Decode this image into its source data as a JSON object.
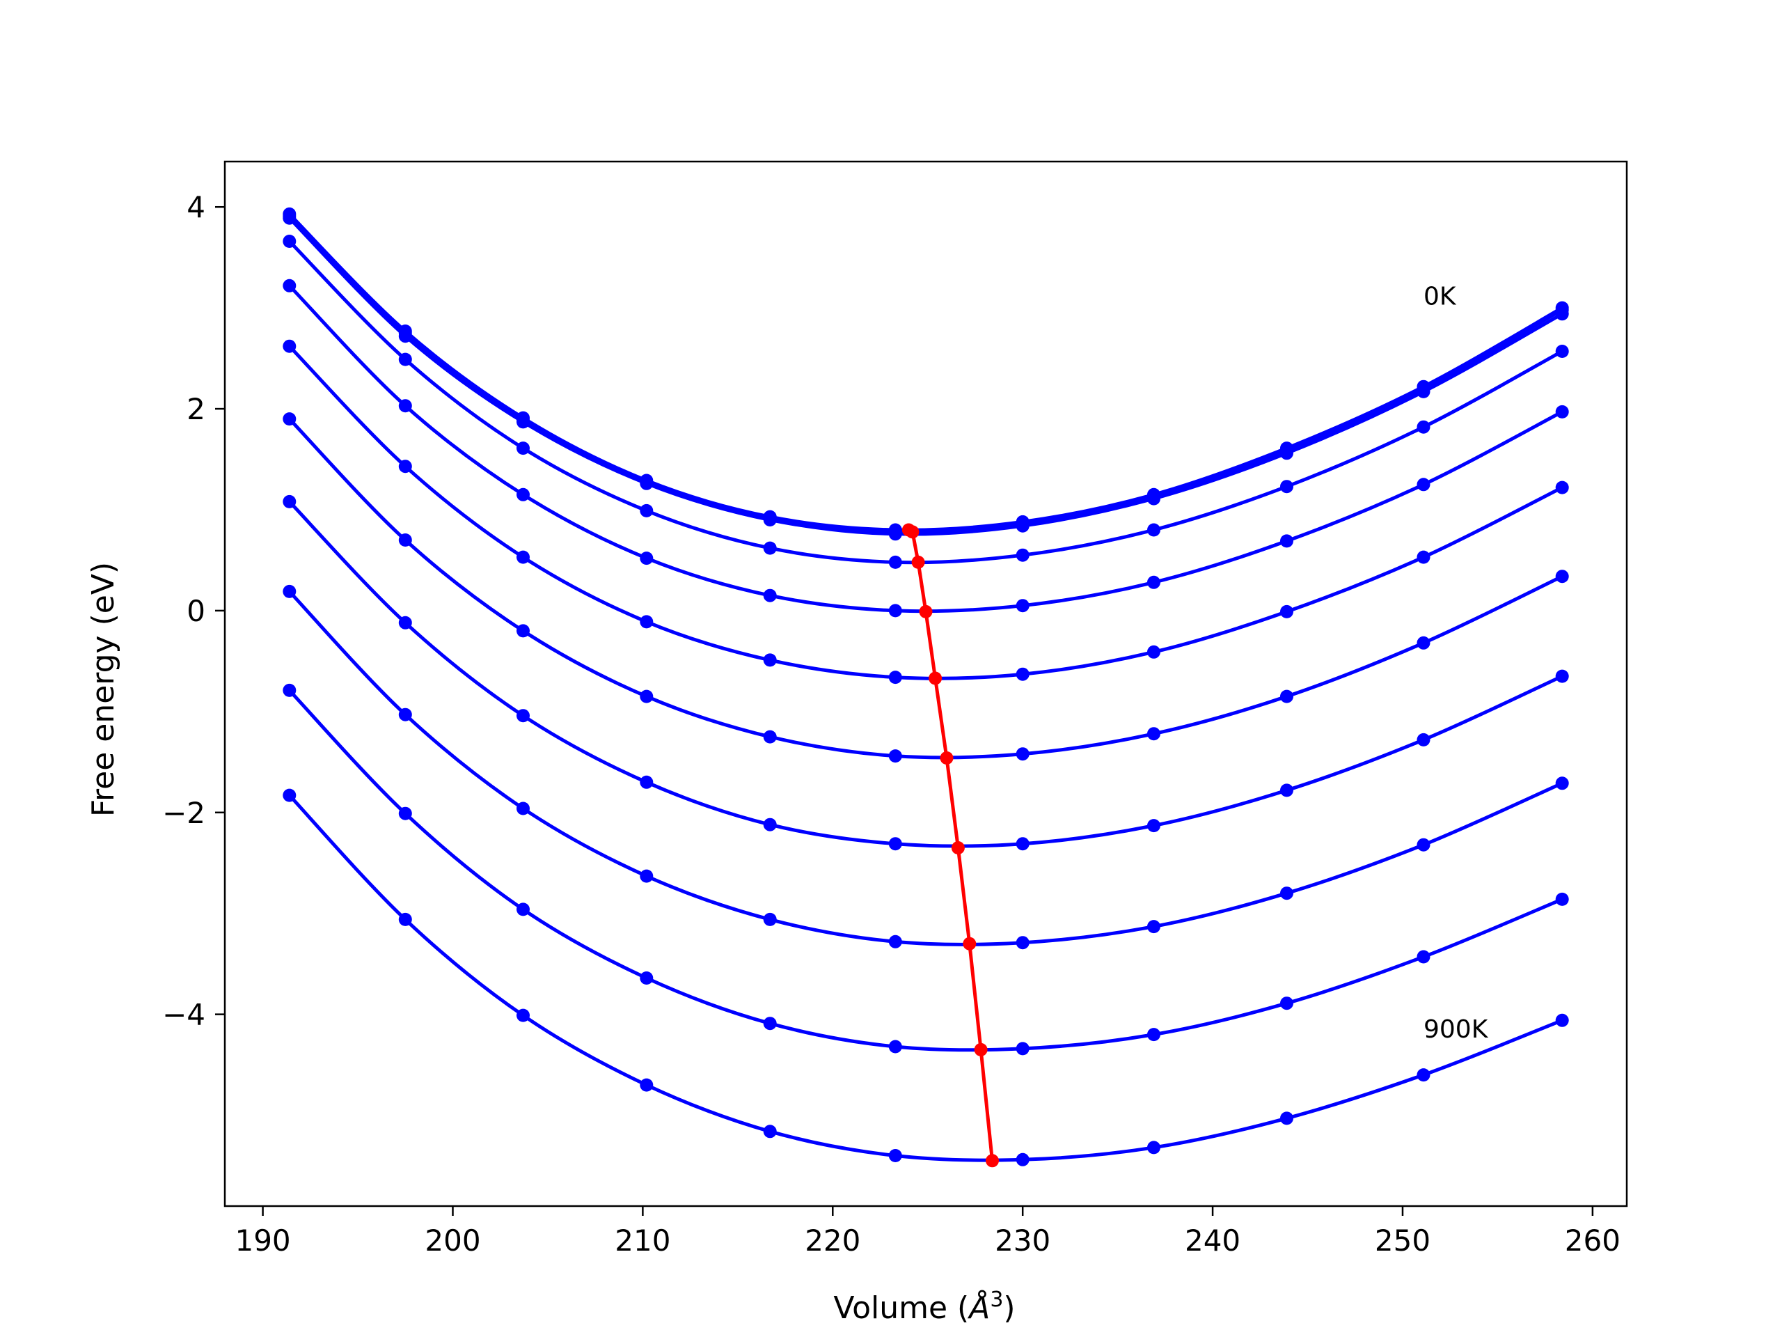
{
  "chart_data": {
    "type": "line",
    "title": "",
    "xlabel": "Volume (",
    "xlabel_unit_base": "Å",
    "xlabel_unit_exp": "3",
    "xlabel_suffix": ")",
    "ylabel": "Free energy (eV)",
    "xlim": [
      188,
      261.8
    ],
    "ylim": [
      -5.9,
      4.45
    ],
    "xticks": [
      190,
      200,
      210,
      220,
      230,
      240,
      250,
      260
    ],
    "xtick_labels": [
      "190",
      "200",
      "210",
      "220",
      "230",
      "240",
      "250",
      "260"
    ],
    "yticks": [
      4,
      2,
      0,
      -2,
      -4
    ],
    "ytick_labels": [
      "4",
      "2",
      "0",
      "−2",
      "−4"
    ],
    "grid": false,
    "x": [
      191.4,
      197.5,
      203.7,
      210.2,
      216.7,
      223.3,
      230.0,
      236.9,
      243.9,
      251.1,
      258.4
    ],
    "series": [
      {
        "color": "#0000ff",
        "values": [
          3.93,
          2.77,
          1.91,
          1.29,
          0.93,
          0.8,
          0.88,
          1.15,
          1.61,
          2.22,
          3.0
        ]
      },
      {
        "color": "#0000ff",
        "values": [
          3.91,
          2.75,
          1.89,
          1.27,
          0.91,
          0.78,
          0.86,
          1.13,
          1.59,
          2.2,
          2.98
        ]
      },
      {
        "color": "#0000ff",
        "values": [
          3.89,
          2.72,
          1.87,
          1.26,
          0.9,
          0.76,
          0.84,
          1.11,
          1.56,
          2.17,
          2.94
        ]
      },
      {
        "color": "#0000ff",
        "values": [
          3.66,
          2.49,
          1.61,
          0.99,
          0.62,
          0.48,
          0.55,
          0.8,
          1.23,
          1.82,
          2.57
        ]
      },
      {
        "color": "#0000ff",
        "values": [
          3.22,
          2.03,
          1.15,
          0.52,
          0.15,
          0.0,
          0.05,
          0.28,
          0.69,
          1.25,
          1.97
        ]
      },
      {
        "color": "#0000ff",
        "values": [
          2.62,
          1.43,
          0.53,
          -0.11,
          -0.49,
          -0.66,
          -0.63,
          -0.41,
          -0.01,
          0.53,
          1.22
        ]
      },
      {
        "color": "#0000ff",
        "values": [
          1.9,
          0.7,
          -0.2,
          -0.85,
          -1.25,
          -1.44,
          -1.42,
          -1.22,
          -0.85,
          -0.32,
          0.34
        ]
      },
      {
        "color": "#0000ff",
        "values": [
          1.08,
          -0.12,
          -1.04,
          -1.7,
          -2.12,
          -2.31,
          -2.31,
          -2.13,
          -1.78,
          -1.28,
          -0.65
        ]
      },
      {
        "color": "#0000ff",
        "values": [
          0.19,
          -1.03,
          -1.96,
          -2.63,
          -3.06,
          -3.28,
          -3.29,
          -3.13,
          -2.8,
          -2.32,
          -1.71
        ]
      },
      {
        "color": "#0000ff",
        "values": [
          -0.79,
          -2.01,
          -2.96,
          -3.64,
          -4.09,
          -4.32,
          -4.34,
          -4.2,
          -3.89,
          -3.43,
          -2.86
        ]
      },
      {
        "color": "#0000ff",
        "values": [
          -1.83,
          -3.06,
          -4.01,
          -4.7,
          -5.16,
          -5.4,
          -5.44,
          -5.32,
          -5.03,
          -4.6,
          -4.06
        ]
      }
    ],
    "minima": {
      "color": "#ff0000",
      "x": [
        224.0,
        224.2,
        224.5,
        224.9,
        225.4,
        226.0,
        226.6,
        227.2,
        227.8,
        228.4
      ],
      "y": [
        0.8,
        0.78,
        0.48,
        -0.01,
        -0.67,
        -1.46,
        -2.35,
        -3.3,
        -4.35,
        -5.45
      ]
    },
    "annotations": [
      {
        "text": "0K",
        "x": 251.1,
        "y": 3.1
      },
      {
        "text": "900K",
        "x": 251.1,
        "y": -4.16
      }
    ]
  }
}
